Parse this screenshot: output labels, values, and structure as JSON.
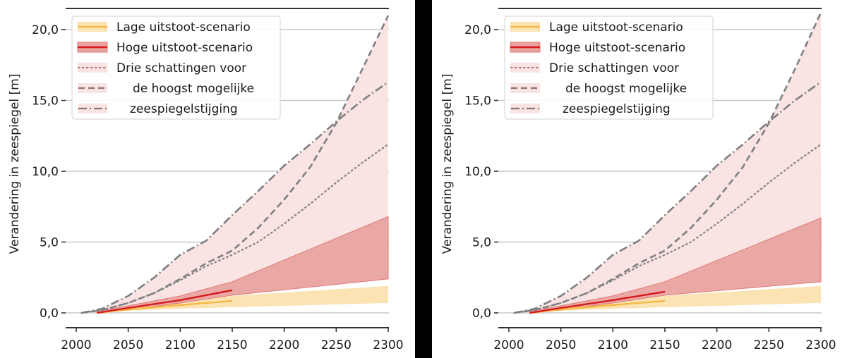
{
  "colors": {
    "low_band": "#fbe3b4",
    "low_line": "#f5b942",
    "high_band": "#e9a3a0",
    "high_band_edge": "#e07a76",
    "high_line": "#d7191c",
    "estimate_band": "#f9e3e3",
    "estimate_line": "#7f7f7f",
    "grid": "#c8c8c8",
    "axis": "#333333",
    "divider": "#000000"
  },
  "chart_data": [
    {
      "type": "area",
      "panel": "left",
      "title": "",
      "xlabel": "",
      "ylabel": "Verandering in zeespiegel [m]",
      "xlim": [
        2000,
        2300
      ],
      "ylim": [
        0,
        21.5
      ],
      "xticks": [
        2000,
        2050,
        2100,
        2150,
        2200,
        2250,
        2300
      ],
      "xtick_labels": [
        "2000",
        "2050",
        "2100",
        "2150",
        "2200",
        "2250",
        "2300"
      ],
      "yticks": [
        0,
        5,
        10,
        15,
        20
      ],
      "ytick_labels": [
        "0,0",
        "5,0",
        "10,0",
        "15,0",
        "20,0"
      ],
      "grid": "horizontal",
      "legend_position": "top-left",
      "legend": [
        {
          "label": "Lage uitstoot-scenario",
          "style": "low"
        },
        {
          "label": "Hoge uitstoot-scenario",
          "style": "high"
        },
        {
          "label": "Drie schattingen voor",
          "style": "dotted"
        },
        {
          "label": "de hoogst mogelijke",
          "style": "dashed"
        },
        {
          "label": "zeespiegelstijging",
          "style": "dashdot"
        }
      ],
      "series": {
        "low_band": {
          "x": [
            2020,
            2050,
            2100,
            2150,
            2300
          ],
          "lower": [
            0,
            0.15,
            0.3,
            0.4,
            0.7
          ],
          "upper": [
            0.05,
            0.3,
            0.8,
            1.2,
            1.9
          ]
        },
        "low_line": {
          "x": [
            2020,
            2050,
            2100,
            2150
          ],
          "y": [
            0,
            0.25,
            0.55,
            0.85
          ]
        },
        "high_band": {
          "x": [
            2020,
            2050,
            2100,
            2150,
            2300
          ],
          "lower": [
            0,
            0.2,
            0.7,
            1.25,
            2.4
          ],
          "upper": [
            0.1,
            0.5,
            1.2,
            2.2,
            6.8
          ]
        },
        "high_line": {
          "x": [
            2020,
            2050,
            2100,
            2150
          ],
          "y": [
            0,
            0.35,
            0.9,
            1.6
          ]
        },
        "dotted": {
          "x": [
            2005,
            2025,
            2050,
            2075,
            2100,
            2125,
            2150,
            2175,
            2200,
            2225,
            2250,
            2275,
            2300
          ],
          "y": [
            0,
            0.2,
            0.7,
            1.4,
            2.3,
            3.3,
            4.1,
            5.0,
            6.3,
            7.7,
            9.2,
            10.6,
            11.9
          ]
        },
        "dashed": {
          "x": [
            2005,
            2025,
            2050,
            2075,
            2100,
            2125,
            2150,
            2175,
            2200,
            2225,
            2250,
            2275,
            2300
          ],
          "y": [
            0,
            0.2,
            0.7,
            1.4,
            2.4,
            3.5,
            4.4,
            6.0,
            8.0,
            10.3,
            13.4,
            17.2,
            21.0
          ]
        },
        "dashdot": {
          "x": [
            2005,
            2025,
            2050,
            2075,
            2100,
            2125,
            2150,
            2175,
            2200,
            2225,
            2250,
            2275,
            2300
          ],
          "y": [
            0,
            0.3,
            1.2,
            2.5,
            4.1,
            5.1,
            6.9,
            8.6,
            10.4,
            11.9,
            13.5,
            15.0,
            16.3
          ]
        }
      }
    },
    {
      "type": "area",
      "panel": "right",
      "title": "",
      "xlabel": "",
      "ylabel": "Verandering in zeespiegel [m]",
      "xlim": [
        2000,
        2300
      ],
      "ylim": [
        0,
        21.5
      ],
      "xticks": [
        2000,
        2050,
        2100,
        2150,
        2200,
        2250,
        2300
      ],
      "xtick_labels": [
        "2000",
        "2050",
        "2100",
        "2150",
        "2200",
        "2250",
        "2300"
      ],
      "yticks": [
        0,
        5,
        10,
        15,
        20
      ],
      "ytick_labels": [
        "0,0",
        "5,0",
        "10,0",
        "15,0",
        "20,0"
      ],
      "grid": "horizontal",
      "legend_position": "top-left",
      "legend": [
        {
          "label": "Lage uitstoot-scenario",
          "style": "low"
        },
        {
          "label": "Hoge uitstoot-scenario",
          "style": "high"
        },
        {
          "label": "Drie schattingen voor",
          "style": "dotted"
        },
        {
          "label": "de hoogst mogelijke",
          "style": "dashed"
        },
        {
          "label": "zeespiegelstijging",
          "style": "dashdot"
        }
      ],
      "series": {
        "low_band": {
          "x": [
            2020,
            2050,
            2100,
            2150,
            2300
          ],
          "lower": [
            0,
            0.15,
            0.3,
            0.4,
            0.7
          ],
          "upper": [
            0.05,
            0.3,
            0.8,
            1.2,
            1.9
          ]
        },
        "low_line": {
          "x": [
            2020,
            2050,
            2100,
            2150
          ],
          "y": [
            0,
            0.25,
            0.55,
            0.85
          ]
        },
        "high_band": {
          "x": [
            2020,
            2050,
            2100,
            2150,
            2300
          ],
          "lower": [
            0,
            0.2,
            0.7,
            1.25,
            2.2
          ],
          "upper": [
            0.1,
            0.5,
            1.2,
            2.2,
            6.7
          ]
        },
        "high_line": {
          "x": [
            2020,
            2050,
            2100,
            2150
          ],
          "y": [
            0,
            0.35,
            0.9,
            1.5
          ]
        },
        "dotted": {
          "x": [
            2005,
            2025,
            2050,
            2075,
            2100,
            2125,
            2150,
            2175,
            2200,
            2225,
            2250,
            2275,
            2300
          ],
          "y": [
            0,
            0.2,
            0.7,
            1.4,
            2.3,
            3.3,
            4.1,
            5.0,
            6.3,
            7.7,
            9.2,
            10.6,
            11.9
          ]
        },
        "dashed": {
          "x": [
            2005,
            2025,
            2050,
            2075,
            2100,
            2125,
            2150,
            2175,
            2200,
            2225,
            2250,
            2275,
            2300
          ],
          "y": [
            0,
            0.2,
            0.7,
            1.4,
            2.4,
            3.5,
            4.4,
            6.0,
            8.0,
            10.3,
            13.4,
            17.2,
            21.2
          ]
        },
        "dashdot": {
          "x": [
            2005,
            2025,
            2050,
            2075,
            2100,
            2125,
            2150,
            2175,
            2200,
            2225,
            2250,
            2275,
            2300
          ],
          "y": [
            0,
            0.3,
            1.2,
            2.5,
            4.1,
            5.1,
            6.9,
            8.6,
            10.4,
            11.9,
            13.5,
            15.0,
            16.3
          ]
        }
      }
    }
  ]
}
